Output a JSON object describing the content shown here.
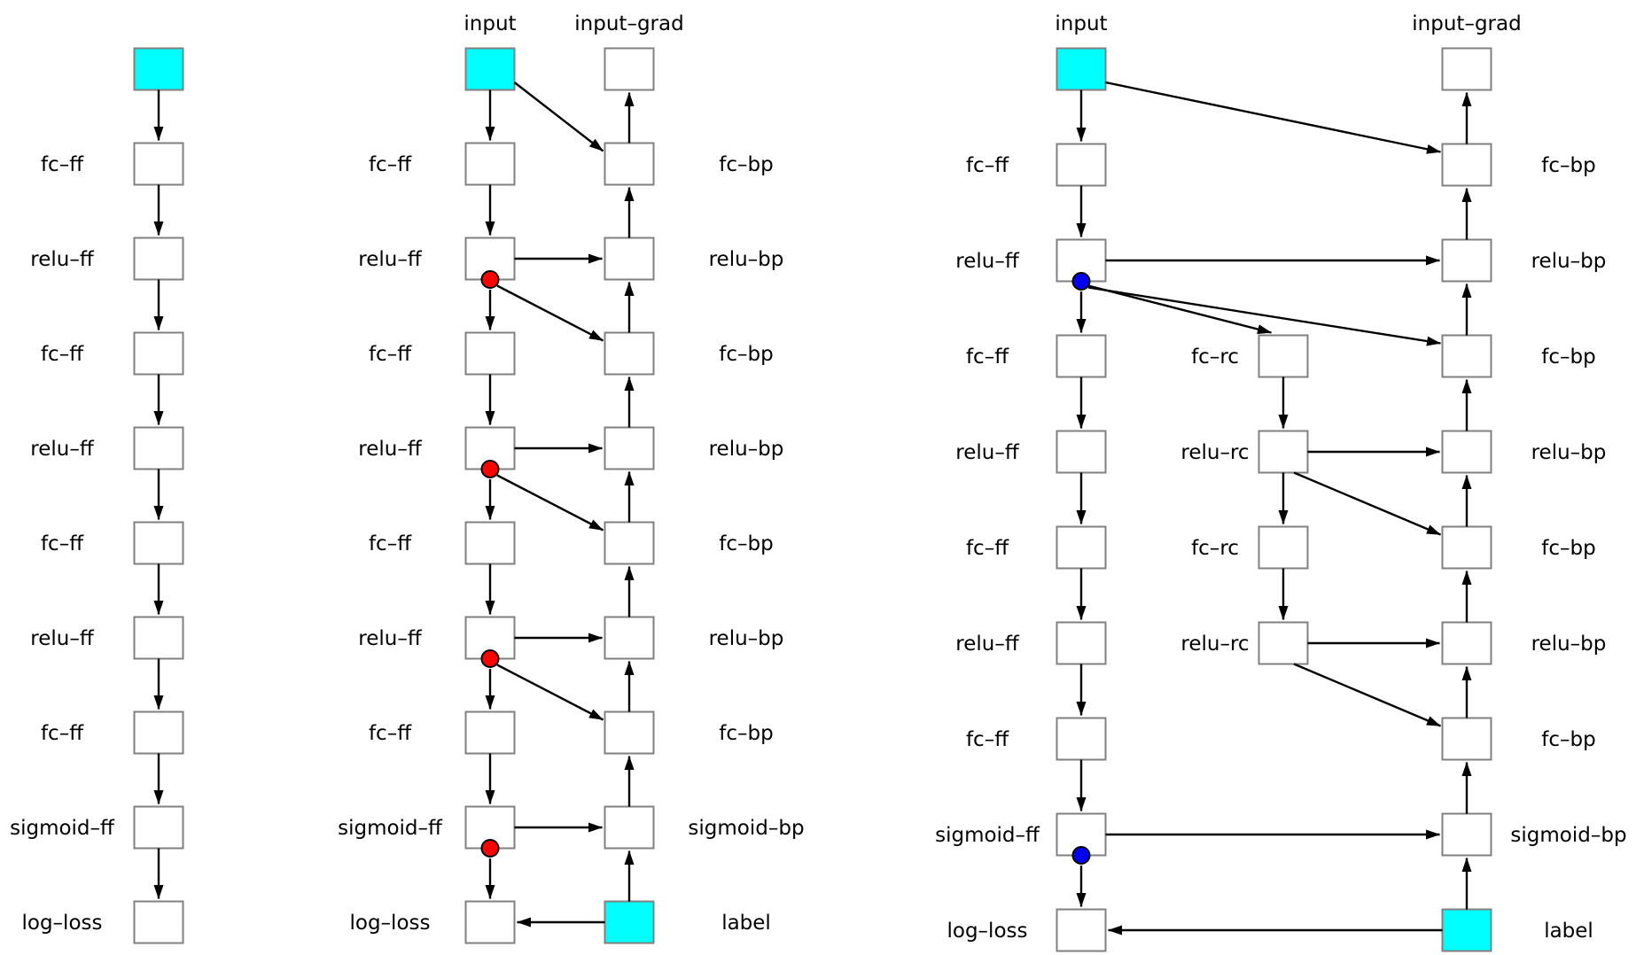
{
  "figure": {
    "background": "#ffffff"
  },
  "colors": {
    "node_fill": "#ffffff",
    "node_border": "#808080",
    "data_node_fill": "#00ffff",
    "arrow": "#000000",
    "text": "#000000",
    "red_dot": "#ff0000",
    "blue_dot": "#0000ee"
  },
  "diagrams": [
    {
      "id": "forward-only",
      "headers": [],
      "labels": [
        {
          "row": 1,
          "col": "label_left",
          "text": "fc–ff"
        },
        {
          "row": 2,
          "col": "label_left",
          "text": "relu–ff"
        },
        {
          "row": 3,
          "col": "label_left",
          "text": "fc–ff"
        },
        {
          "row": 4,
          "col": "label_left",
          "text": "relu–ff"
        },
        {
          "row": 5,
          "col": "label_left",
          "text": "fc–ff"
        },
        {
          "row": 6,
          "col": "label_left",
          "text": "relu–ff"
        },
        {
          "row": 7,
          "col": "label_left",
          "text": "fc–ff"
        },
        {
          "row": 8,
          "col": "label_left",
          "text": "sigmoid–ff"
        },
        {
          "row": 9,
          "col": "label_left",
          "text": "log–loss"
        }
      ],
      "nodes": [
        {
          "id": "input",
          "col": "ff",
          "row": 0,
          "fill": "data"
        },
        {
          "id": "fc1",
          "col": "ff",
          "row": 1
        },
        {
          "id": "relu2",
          "col": "ff",
          "row": 2
        },
        {
          "id": "fc3",
          "col": "ff",
          "row": 3
        },
        {
          "id": "relu4",
          "col": "ff",
          "row": 4
        },
        {
          "id": "fc5",
          "col": "ff",
          "row": 5
        },
        {
          "id": "relu6",
          "col": "ff",
          "row": 6
        },
        {
          "id": "fc7",
          "col": "ff",
          "row": 7
        },
        {
          "id": "sigmoid8",
          "col": "ff",
          "row": 8
        },
        {
          "id": "logloss9",
          "col": "ff",
          "row": 9
        }
      ],
      "dots": [],
      "edges": [
        {
          "from": "input",
          "to": "fc1",
          "kind": "down"
        },
        {
          "from": "fc1",
          "to": "relu2",
          "kind": "down"
        },
        {
          "from": "relu2",
          "to": "fc3",
          "kind": "down"
        },
        {
          "from": "fc3",
          "to": "relu4",
          "kind": "down"
        },
        {
          "from": "relu4",
          "to": "fc5",
          "kind": "down"
        },
        {
          "from": "fc5",
          "to": "relu6",
          "kind": "down"
        },
        {
          "from": "relu6",
          "to": "fc7",
          "kind": "down"
        },
        {
          "from": "fc7",
          "to": "sigmoid8",
          "kind": "down"
        },
        {
          "from": "sigmoid8",
          "to": "logloss9",
          "kind": "down"
        }
      ]
    },
    {
      "id": "forward-backward",
      "headers": [
        {
          "col": "ff",
          "text": "input"
        },
        {
          "col": "bp",
          "text": "input–grad"
        }
      ],
      "labels": [
        {
          "row": 1,
          "col": "label_left",
          "text": "fc–ff"
        },
        {
          "row": 2,
          "col": "label_left",
          "text": "relu–ff"
        },
        {
          "row": 3,
          "col": "label_left",
          "text": "fc–ff"
        },
        {
          "row": 4,
          "col": "label_left",
          "text": "relu–ff"
        },
        {
          "row": 5,
          "col": "label_left",
          "text": "fc–ff"
        },
        {
          "row": 6,
          "col": "label_left",
          "text": "relu–ff"
        },
        {
          "row": 7,
          "col": "label_left",
          "text": "fc–ff"
        },
        {
          "row": 8,
          "col": "label_left",
          "text": "sigmoid–ff"
        },
        {
          "row": 9,
          "col": "label_left",
          "text": "log–loss"
        },
        {
          "row": 1,
          "col": "label_right",
          "text": "fc–bp"
        },
        {
          "row": 2,
          "col": "label_right",
          "text": "relu–bp"
        },
        {
          "row": 3,
          "col": "label_right",
          "text": "fc–bp"
        },
        {
          "row": 4,
          "col": "label_right",
          "text": "relu–bp"
        },
        {
          "row": 5,
          "col": "label_right",
          "text": "fc–bp"
        },
        {
          "row": 6,
          "col": "label_right",
          "text": "relu–bp"
        },
        {
          "row": 7,
          "col": "label_right",
          "text": "fc–bp"
        },
        {
          "row": 8,
          "col": "label_right",
          "text": "sigmoid–bp"
        },
        {
          "row": 9,
          "col": "label_right",
          "text": "label"
        }
      ],
      "nodes": [
        {
          "id": "input",
          "col": "ff",
          "row": 0,
          "fill": "data"
        },
        {
          "id": "fc1",
          "col": "ff",
          "row": 1
        },
        {
          "id": "relu2",
          "col": "ff",
          "row": 2
        },
        {
          "id": "fc3",
          "col": "ff",
          "row": 3
        },
        {
          "id": "relu4",
          "col": "ff",
          "row": 4
        },
        {
          "id": "fc5",
          "col": "ff",
          "row": 5
        },
        {
          "id": "relu6",
          "col": "ff",
          "row": 6
        },
        {
          "id": "fc7",
          "col": "ff",
          "row": 7
        },
        {
          "id": "sigmoid8",
          "col": "ff",
          "row": 8
        },
        {
          "id": "logloss9",
          "col": "ff",
          "row": 9
        },
        {
          "id": "inputgrad",
          "col": "bp",
          "row": 0
        },
        {
          "id": "fcbp1",
          "col": "bp",
          "row": 1
        },
        {
          "id": "relubp2",
          "col": "bp",
          "row": 2
        },
        {
          "id": "fcbp3",
          "col": "bp",
          "row": 3
        },
        {
          "id": "relubp4",
          "col": "bp",
          "row": 4
        },
        {
          "id": "fcbp5",
          "col": "bp",
          "row": 5
        },
        {
          "id": "relubp6",
          "col": "bp",
          "row": 6
        },
        {
          "id": "fcbp7",
          "col": "bp",
          "row": 7
        },
        {
          "id": "sigmoidbp8",
          "col": "bp",
          "row": 8
        },
        {
          "id": "label9",
          "col": "bp",
          "row": 9,
          "fill": "data"
        }
      ],
      "dots": [
        {
          "node": "relu2",
          "color": "red"
        },
        {
          "node": "relu4",
          "color": "red"
        },
        {
          "node": "relu6",
          "color": "red"
        },
        {
          "node": "sigmoid8",
          "color": "red"
        }
      ],
      "edges": [
        {
          "from": "input",
          "to": "fc1",
          "kind": "down"
        },
        {
          "from": "input",
          "to": "fcbp1",
          "kind": "diag_bp"
        },
        {
          "from": "fc1",
          "to": "relu2",
          "kind": "down"
        },
        {
          "from": "relu2",
          "to": "relubp2",
          "kind": "right"
        },
        {
          "from": "relu2",
          "to": "fc3",
          "kind": "down",
          "fromDot": true
        },
        {
          "from": "relu2",
          "to": "fcbp3",
          "kind": "diag_bp",
          "fromDot": true
        },
        {
          "from": "fc3",
          "to": "relu4",
          "kind": "down"
        },
        {
          "from": "relu4",
          "to": "relubp4",
          "kind": "right"
        },
        {
          "from": "relu4",
          "to": "fc5",
          "kind": "down",
          "fromDot": true
        },
        {
          "from": "relu4",
          "to": "fcbp5",
          "kind": "diag_bp",
          "fromDot": true
        },
        {
          "from": "fc5",
          "to": "relu6",
          "kind": "down"
        },
        {
          "from": "relu6",
          "to": "relubp6",
          "kind": "right"
        },
        {
          "from": "relu6",
          "to": "fc7",
          "kind": "down",
          "fromDot": true
        },
        {
          "from": "relu6",
          "to": "fcbp7",
          "kind": "diag_bp",
          "fromDot": true
        },
        {
          "from": "fc7",
          "to": "sigmoid8",
          "kind": "down"
        },
        {
          "from": "sigmoid8",
          "to": "sigmoidbp8",
          "kind": "right"
        },
        {
          "from": "sigmoid8",
          "to": "logloss9",
          "kind": "down",
          "fromDot": true
        },
        {
          "from": "label9",
          "to": "logloss9",
          "kind": "left"
        },
        {
          "from": "label9",
          "to": "sigmoidbp8",
          "kind": "up"
        },
        {
          "from": "sigmoidbp8",
          "to": "fcbp7",
          "kind": "up"
        },
        {
          "from": "fcbp7",
          "to": "relubp6",
          "kind": "up"
        },
        {
          "from": "relubp6",
          "to": "fcbp5",
          "kind": "up"
        },
        {
          "from": "fcbp5",
          "to": "relubp4",
          "kind": "up"
        },
        {
          "from": "relubp4",
          "to": "fcbp3",
          "kind": "up"
        },
        {
          "from": "fcbp3",
          "to": "relubp2",
          "kind": "up"
        },
        {
          "from": "relubp2",
          "to": "fcbp1",
          "kind": "up"
        },
        {
          "from": "fcbp1",
          "to": "inputgrad",
          "kind": "up"
        }
      ]
    },
    {
      "id": "recompute",
      "headers": [
        {
          "col": "ff",
          "text": "input"
        },
        {
          "col": "bp",
          "text": "input–grad"
        }
      ],
      "labels": [
        {
          "row": 1,
          "col": "label_left",
          "text": "fc–ff"
        },
        {
          "row": 2,
          "col": "label_left",
          "text": "relu–ff"
        },
        {
          "row": 3,
          "col": "label_left",
          "text": "fc–ff"
        },
        {
          "row": 4,
          "col": "label_left",
          "text": "relu–ff"
        },
        {
          "row": 5,
          "col": "label_left",
          "text": "fc–ff"
        },
        {
          "row": 6,
          "col": "label_left",
          "text": "relu–ff"
        },
        {
          "row": 7,
          "col": "label_left",
          "text": "fc–ff"
        },
        {
          "row": 8,
          "col": "label_left",
          "text": "sigmoid–ff"
        },
        {
          "row": 9,
          "col": "label_left",
          "text": "log–loss"
        },
        {
          "row": 3,
          "col": "label_rc",
          "text": "fc–rc"
        },
        {
          "row": 4,
          "col": "label_rc",
          "text": "relu–rc"
        },
        {
          "row": 5,
          "col": "label_rc",
          "text": "fc–rc"
        },
        {
          "row": 6,
          "col": "label_rc",
          "text": "relu–rc"
        },
        {
          "row": 1,
          "col": "label_right",
          "text": "fc–bp"
        },
        {
          "row": 2,
          "col": "label_right",
          "text": "relu–bp"
        },
        {
          "row": 3,
          "col": "label_right",
          "text": "fc–bp"
        },
        {
          "row": 4,
          "col": "label_right",
          "text": "relu–bp"
        },
        {
          "row": 5,
          "col": "label_right",
          "text": "fc–bp"
        },
        {
          "row": 6,
          "col": "label_right",
          "text": "relu–bp"
        },
        {
          "row": 7,
          "col": "label_right",
          "text": "fc–bp"
        },
        {
          "row": 8,
          "col": "label_right",
          "text": "sigmoid–bp"
        },
        {
          "row": 9,
          "col": "label_right",
          "text": "label"
        }
      ],
      "nodes": [
        {
          "id": "input",
          "col": "ff",
          "row": 0,
          "fill": "data"
        },
        {
          "id": "fc1",
          "col": "ff",
          "row": 1
        },
        {
          "id": "relu2",
          "col": "ff",
          "row": 2
        },
        {
          "id": "fc3",
          "col": "ff",
          "row": 3
        },
        {
          "id": "relu4",
          "col": "ff",
          "row": 4
        },
        {
          "id": "fc5",
          "col": "ff",
          "row": 5
        },
        {
          "id": "relu6",
          "col": "ff",
          "row": 6
        },
        {
          "id": "fc7",
          "col": "ff",
          "row": 7
        },
        {
          "id": "sigmoid8",
          "col": "ff",
          "row": 8
        },
        {
          "id": "logloss9",
          "col": "ff",
          "row": 9
        },
        {
          "id": "fcrc3",
          "col": "rc",
          "row": 3
        },
        {
          "id": "relurc4",
          "col": "rc",
          "row": 4
        },
        {
          "id": "fcrc5",
          "col": "rc",
          "row": 5
        },
        {
          "id": "relurc6",
          "col": "rc",
          "row": 6
        },
        {
          "id": "inputgrad",
          "col": "bp",
          "row": 0
        },
        {
          "id": "fcbp1",
          "col": "bp",
          "row": 1
        },
        {
          "id": "relubp2",
          "col": "bp",
          "row": 2
        },
        {
          "id": "fcbp3",
          "col": "bp",
          "row": 3
        },
        {
          "id": "relubp4",
          "col": "bp",
          "row": 4
        },
        {
          "id": "fcbp5",
          "col": "bp",
          "row": 5
        },
        {
          "id": "relubp6",
          "col": "bp",
          "row": 6
        },
        {
          "id": "fcbp7",
          "col": "bp",
          "row": 7
        },
        {
          "id": "sigmoidbp8",
          "col": "bp",
          "row": 8
        },
        {
          "id": "label9",
          "col": "bp",
          "row": 9,
          "fill": "data"
        }
      ],
      "dots": [
        {
          "node": "relu2",
          "color": "blue"
        },
        {
          "node": "sigmoid8",
          "color": "blue"
        }
      ],
      "edges": [
        {
          "from": "input",
          "to": "fc1",
          "kind": "down"
        },
        {
          "from": "input",
          "to": "fcbp1",
          "kind": "diag_bp"
        },
        {
          "from": "fc1",
          "to": "relu2",
          "kind": "down"
        },
        {
          "from": "relu2",
          "to": "relubp2",
          "kind": "right"
        },
        {
          "from": "relu2",
          "to": "fc3",
          "kind": "down",
          "fromDot": true
        },
        {
          "from": "relu2",
          "to": "fcrc3",
          "kind": "diag_rc",
          "fromDot": true
        },
        {
          "from": "relu2",
          "to": "fcbp3",
          "kind": "diag_bp",
          "fromDot": true
        },
        {
          "from": "fc3",
          "to": "relu4",
          "kind": "down"
        },
        {
          "from": "relu4",
          "to": "fc5",
          "kind": "down"
        },
        {
          "from": "fc5",
          "to": "relu6",
          "kind": "down"
        },
        {
          "from": "relu6",
          "to": "fc7",
          "kind": "down"
        },
        {
          "from": "fc7",
          "to": "sigmoid8",
          "kind": "down"
        },
        {
          "from": "fcrc3",
          "to": "relurc4",
          "kind": "down"
        },
        {
          "from": "relurc4",
          "to": "relubp4",
          "kind": "right"
        },
        {
          "from": "relurc4",
          "to": "fcrc5",
          "kind": "down"
        },
        {
          "from": "relurc4",
          "to": "fcbp5",
          "kind": "diag_corner"
        },
        {
          "from": "fcrc5",
          "to": "relurc6",
          "kind": "down"
        },
        {
          "from": "relurc6",
          "to": "relubp6",
          "kind": "right"
        },
        {
          "from": "relurc6",
          "to": "fcbp7",
          "kind": "diag_corner"
        },
        {
          "from": "sigmoid8",
          "to": "sigmoidbp8",
          "kind": "right"
        },
        {
          "from": "sigmoid8",
          "to": "logloss9",
          "kind": "down",
          "fromDot": true
        },
        {
          "from": "label9",
          "to": "logloss9",
          "kind": "left"
        },
        {
          "from": "label9",
          "to": "sigmoidbp8",
          "kind": "up"
        },
        {
          "from": "sigmoidbp8",
          "to": "fcbp7",
          "kind": "up"
        },
        {
          "from": "fcbp7",
          "to": "relubp6",
          "kind": "up"
        },
        {
          "from": "relubp6",
          "to": "fcbp5",
          "kind": "up"
        },
        {
          "from": "fcbp5",
          "to": "relubp4",
          "kind": "up"
        },
        {
          "from": "relubp4",
          "to": "fcbp3",
          "kind": "up"
        },
        {
          "from": "fcbp3",
          "to": "relubp2",
          "kind": "up"
        },
        {
          "from": "relubp2",
          "to": "fcbp1",
          "kind": "up"
        },
        {
          "from": "fcbp1",
          "to": "inputgrad",
          "kind": "up"
        }
      ]
    }
  ]
}
